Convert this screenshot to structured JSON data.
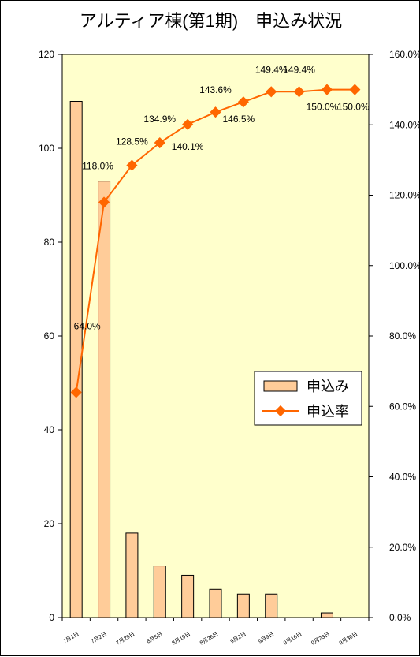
{
  "chart_data": {
    "title": "アルティア棟(第1期)　申込み状況",
    "type": "bar+line",
    "categories": [
      "7月1日",
      "7月2日",
      "7月29日",
      "8月5日",
      "8月19日",
      "8月26日",
      "9月2日",
      "9月9日",
      "9月16日",
      "9月23日",
      "9月30日"
    ],
    "series": [
      {
        "name": "申込み",
        "type": "bar",
        "axis": "left",
        "values": [
          110,
          93,
          18,
          11,
          9,
          6,
          5,
          5,
          0,
          1,
          0
        ],
        "color": "#FFCC99"
      },
      {
        "name": "申込率",
        "type": "line",
        "axis": "right",
        "values": [
          64.0,
          118.0,
          128.5,
          134.9,
          140.1,
          143.6,
          146.5,
          149.4,
          149.4,
          150.0,
          150.0
        ],
        "labels": [
          "64.0%",
          "118.0%",
          "128.5%",
          "134.9%",
          "140.1%",
          "143.6%",
          "146.5%",
          "149.4%",
          "149.4%",
          "150.0%",
          "150.0%"
        ],
        "color": "#FF6600"
      }
    ],
    "y_left": {
      "min": 0,
      "max": 120,
      "ticks": [
        "0",
        "20",
        "40",
        "60",
        "80",
        "100",
        "120"
      ]
    },
    "y_right": {
      "min": 0,
      "max": 160,
      "ticks": [
        "0.0%",
        "20.0%",
        "40.0%",
        "60.0%",
        "80.0%",
        "100.0%",
        "120.0%",
        "140.0%",
        "160.0%"
      ]
    },
    "plot_background": "#FFFFCC",
    "grid": false,
    "legend_position": "right-middle"
  }
}
